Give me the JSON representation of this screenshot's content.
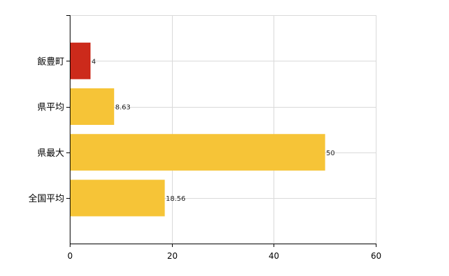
{
  "chart_data": {
    "type": "bar",
    "orientation": "horizontal",
    "categories": [
      "飯豊町",
      "県平均",
      "県最大",
      "全国平均"
    ],
    "values": [
      4,
      8.63,
      50,
      18.56
    ],
    "value_labels": [
      "4",
      "8.63",
      "50",
      "18.56"
    ],
    "bar_colors": [
      "#cc2a1b",
      "#f6c437",
      "#f6c437",
      "#f6c437"
    ],
    "xlim": [
      0,
      60
    ],
    "xticks": [
      0,
      20,
      40,
      60
    ],
    "xtick_labels": [
      "0",
      "20",
      "40",
      "60"
    ],
    "grid": true,
    "title": "",
    "xlabel": "",
    "ylabel": ""
  },
  "colors": {
    "highlight": "#cc2a1b",
    "default_bar": "#f6c437",
    "grid": "#d9d9d9",
    "axis": "#000000"
  }
}
